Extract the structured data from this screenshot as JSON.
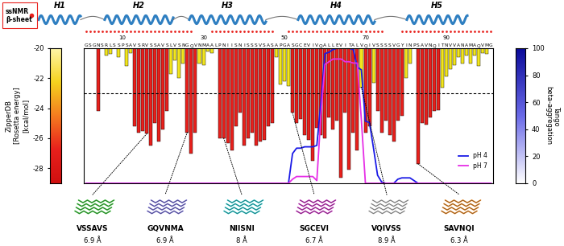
{
  "chart_data": {
    "type": "bar",
    "sequence": "GSGNSRLSSPSAVSRVSSAVSLVSNGQVNMAALPNIISNISSSVSASAPGASGCEVIVQALLEVITALVQIVSSSSVGYINPSAVNQITNVVANAMAQVMG",
    "x": [
      1,
      2,
      3,
      4,
      5,
      6,
      7,
      8,
      9,
      10,
      11,
      12,
      13,
      14,
      15,
      16,
      17,
      18,
      19,
      20,
      21,
      22,
      23,
      24,
      25,
      26,
      27,
      28,
      29,
      30,
      31,
      32,
      33,
      34,
      35,
      36,
      37,
      38,
      39,
      40,
      41,
      42,
      43,
      44,
      45,
      46,
      47,
      48,
      49,
      50,
      51,
      52,
      53,
      54,
      55,
      56,
      57,
      58,
      59,
      60,
      61,
      62,
      63,
      64,
      65,
      66,
      67,
      68,
      69,
      70,
      71,
      72,
      73,
      74,
      75,
      76,
      77,
      78,
      79,
      80,
      81,
      82,
      83,
      84,
      85,
      86,
      87,
      88,
      89,
      90,
      91,
      92,
      93,
      94,
      95,
      96,
      97,
      98,
      99,
      100,
      101
    ],
    "xlim": [
      0.5,
      101.5
    ],
    "xticks": [
      10,
      30,
      50,
      70,
      90
    ],
    "values": [
      null,
      null,
      null,
      -24.2,
      null,
      -20.5,
      -20.4,
      null,
      -20.6,
      null,
      -21.2,
      -20.3,
      -25.2,
      -25.6,
      -25.5,
      -25.7,
      -26.5,
      -25.0,
      -26.2,
      -25.4,
      -24.2,
      -21.7,
      -20.8,
      -22.0,
      -21.0,
      -25.6,
      -27.0,
      -25.6,
      -21.0,
      -21.1,
      -20.2,
      -20.3,
      null,
      -26.0,
      -26.0,
      -26.3,
      -26.8,
      -25.2,
      -24.3,
      -26.5,
      -26.0,
      -25.6,
      -26.5,
      -26.2,
      -26.1,
      -25.2,
      -25.0,
      -20.6,
      -22.4,
      -22.2,
      -22.5,
      -24.3,
      -25.0,
      -24.7,
      -25.8,
      -26.1,
      -27.5,
      -25.3,
      -25.8,
      -26.0,
      -24.6,
      -25.4,
      -24.8,
      -28.6,
      -24.3,
      -28.1,
      -25.6,
      -26.8,
      -22.6,
      -25.6,
      -25.2,
      -22.3,
      -24.2,
      -25.6,
      -24.8,
      -25.8,
      -26.2,
      -24.8,
      -24.5,
      -22.0,
      -21.0,
      null,
      -27.7,
      -25.0,
      -25.1,
      -24.6,
      -24.2,
      -24.1,
      -22.6,
      -21.9,
      -21.4,
      -21.1,
      -20.6,
      -21.0,
      -20.5,
      -21.0,
      -20.5,
      -21.2,
      -20.3,
      -20.4,
      null
    ],
    "colors": [
      null,
      null,
      null,
      "#e8201c",
      null,
      "#f2e51d",
      "#f2e51d",
      null,
      "#f2e51d",
      null,
      "#f2e51d",
      "#f2e51d",
      "#e8201c",
      "#e8201c",
      "#e8201c",
      "#e8201c",
      "#e8201c",
      "#e8201c",
      "#e8201c",
      "#e8201c",
      "#e8201c",
      "#f2e51d",
      "#f2e51d",
      "#f2e51d",
      "#f2e51d",
      "#e8201c",
      "#e8201c",
      "#e8201c",
      "#f2e51d",
      "#f2e51d",
      "#f2e51d",
      "#f2e51d",
      null,
      "#e8201c",
      "#e8201c",
      "#e8201c",
      "#e8201c",
      "#e8201c",
      "#e8201c",
      "#e8201c",
      "#e8201c",
      "#e8201c",
      "#e8201c",
      "#e8201c",
      "#e8201c",
      "#e8201c",
      "#e8201c",
      "#f2e51d",
      "#f2e51d",
      "#f2e51d",
      "#f2e51d",
      "#e8201c",
      "#e8201c",
      "#e8201c",
      "#e8201c",
      "#e8201c",
      "#e8201c",
      "#e8201c",
      "#e8201c",
      "#e8201c",
      "#e8201c",
      "#e8201c",
      "#e8201c",
      "#e8201c",
      "#e8201c",
      "#e8201c",
      "#e8201c",
      "#e8201c",
      "#f2e51d",
      "#e8201c",
      "#e8201c",
      "#f2e51d",
      "#e8201c",
      "#e8201c",
      "#e8201c",
      "#e8201c",
      "#e8201c",
      "#e8201c",
      "#e8201c",
      "#f2e51d",
      "#f2e51d",
      null,
      "#e8201c",
      "#e8201c",
      "#e8201c",
      "#e8201c",
      "#e8201c",
      "#e8201c",
      "#f2e51d",
      "#f2e51d",
      "#f2e51d",
      "#f2e51d",
      "#f2e51d",
      "#f2e51d",
      "#f2e51d",
      "#f2e51d",
      "#f2e51d",
      "#f2e51d",
      "#f2e51d",
      "#f2e51d",
      null
    ],
    "ylim": [
      -29,
      -20
    ],
    "yticks": [
      -20,
      -22,
      -24,
      -26,
      -28
    ],
    "y_label": "ZipperDB\n[Rosetta energy]\n[kcal/mol]",
    "threshold": -23,
    "y2lim": [
      0,
      100
    ],
    "y2ticks": [
      0,
      20,
      40,
      60,
      80,
      100
    ],
    "y2_label": "Tango\nbeta-aggregation",
    "legend": "lower right",
    "series": [
      {
        "name": "pH 4",
        "type": "line",
        "axis": "y2",
        "color": "#1a1ae6",
        "values": [
          0,
          0,
          0,
          0,
          0,
          0,
          0,
          0,
          0,
          0,
          0,
          0,
          0,
          0,
          0,
          0,
          0,
          0,
          0,
          0,
          0,
          0,
          0,
          0,
          0,
          0,
          0,
          0,
          0,
          0,
          0,
          0,
          0,
          0,
          0,
          0,
          0,
          0,
          0,
          0,
          0,
          0,
          0,
          0,
          0,
          0,
          0,
          0,
          0,
          0,
          0,
          22,
          26,
          26,
          27,
          27,
          27,
          28,
          60,
          96,
          97,
          99,
          100,
          100,
          100,
          100,
          99,
          86,
          84,
          46,
          45,
          26,
          6,
          1,
          0,
          0,
          0,
          3,
          4,
          4,
          4,
          2,
          0,
          0,
          0,
          0,
          0,
          0,
          0,
          0,
          0,
          0,
          0,
          0,
          0,
          0,
          0,
          0,
          0,
          0,
          0
        ]
      },
      {
        "name": "pH 7",
        "type": "line",
        "axis": "y2",
        "color": "#e62ee6",
        "values": [
          0,
          0,
          0,
          0,
          0,
          0,
          0,
          0,
          0,
          0,
          0,
          0,
          0,
          0,
          0,
          0,
          0,
          0,
          0,
          0,
          0,
          0,
          0,
          0,
          0,
          0,
          0,
          0,
          0,
          0,
          0,
          0,
          0,
          0,
          0,
          0,
          0,
          0,
          0,
          0,
          0,
          0,
          0,
          0,
          0,
          0,
          0,
          0,
          0,
          0,
          0,
          3,
          5,
          5,
          5,
          5,
          5,
          2,
          50,
          88,
          90,
          92,
          92,
          92,
          90,
          90,
          89,
          89,
          47,
          0,
          0,
          0,
          0,
          0,
          0,
          0,
          0,
          0,
          0,
          0,
          0,
          0,
          0,
          0,
          0,
          0,
          0,
          0,
          0,
          0,
          0,
          0,
          0,
          0,
          0,
          0,
          0,
          0,
          0,
          0,
          0
        ]
      }
    ],
    "helices": [
      "H1",
      "H2",
      "H3",
      "H4",
      "H5"
    ],
    "ssnmr_label": "ssNMR\nβ-sheet",
    "ssnmr_beta_sheet_residues": [
      1,
      2,
      3,
      4,
      5,
      6,
      7,
      8,
      9,
      10,
      11,
      12,
      13,
      14,
      15,
      16,
      17,
      18,
      19,
      20,
      21,
      22,
      23,
      24,
      25,
      26,
      27,
      32,
      33,
      34,
      35,
      36,
      37,
      38,
      39,
      40,
      41,
      42,
      43,
      44,
      45,
      46,
      47,
      51,
      52,
      53,
      54,
      55,
      56,
      57,
      58,
      59,
      60,
      61,
      62,
      63,
      64,
      65,
      66,
      67,
      68,
      69,
      70,
      71,
      72,
      73,
      74,
      79,
      80,
      81,
      82,
      83,
      84,
      85,
      86,
      87,
      88,
      89,
      90,
      91,
      92,
      93,
      94,
      95,
      96,
      97,
      98,
      99,
      100,
      101
    ],
    "peptides": [
      {
        "sequence": "VSSAVS",
        "start": 16,
        "distance": "6.9 Å",
        "color": "#33c233"
      },
      {
        "sequence": "GQVNMA",
        "start": 26,
        "distance": "6.9 Å",
        "color": "#7a72dc"
      },
      {
        "sequence": "NIISNI",
        "start": 35,
        "distance": "8 Å",
        "color": "#22c8cc"
      },
      {
        "sequence": "SGCEVI",
        "start": 52,
        "distance": "6.7 Å",
        "color": "#cc33c4"
      },
      {
        "sequence": "VQIVSS",
        "start": 69,
        "distance": "8.9 Å",
        "color": "#bfbfbf"
      },
      {
        "sequence": "SAVNQI",
        "start": 83,
        "distance": "6.3 Å",
        "color": "#ee8a22"
      }
    ]
  }
}
